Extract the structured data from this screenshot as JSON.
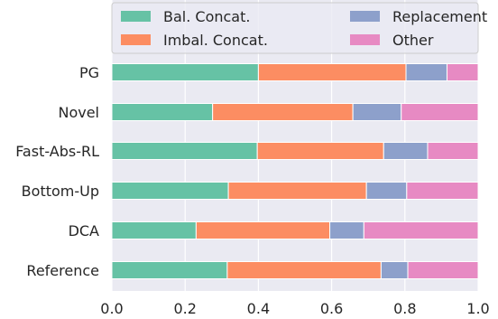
{
  "chart_data": {
    "type": "bar",
    "orientation": "horizontal",
    "stacked": true,
    "title": "",
    "xlabel": "",
    "ylabel": "",
    "xlim": [
      0.0,
      1.0
    ],
    "xticks": [
      "0.0",
      "0.2",
      "0.4",
      "0.6",
      "0.8",
      "1.0"
    ],
    "grid": true,
    "legend_position": "top",
    "categories": [
      "PG",
      "Novel",
      "Fast-Abs-RL",
      "Bottom-Up",
      "DCA",
      "Reference"
    ],
    "series": [
      {
        "name": "Bal. Concat.",
        "color": "#66c2a5",
        "values": [
          0.4,
          0.275,
          0.397,
          0.318,
          0.23,
          0.315
        ]
      },
      {
        "name": "Imbal. Concat.",
        "color": "#fc8d62",
        "values": [
          0.403,
          0.383,
          0.345,
          0.377,
          0.365,
          0.42
        ]
      },
      {
        "name": "Replacement",
        "color": "#8da0cb",
        "values": [
          0.112,
          0.132,
          0.12,
          0.11,
          0.093,
          0.073
        ]
      },
      {
        "name": "Other",
        "color": "#e78ac3",
        "values": [
          0.085,
          0.21,
          0.138,
          0.195,
          0.312,
          0.192
        ]
      }
    ],
    "legend_columns": [
      [
        "Bal. Concat.",
        "Imbal. Concat."
      ],
      [
        "Replacement",
        "Other"
      ]
    ]
  }
}
